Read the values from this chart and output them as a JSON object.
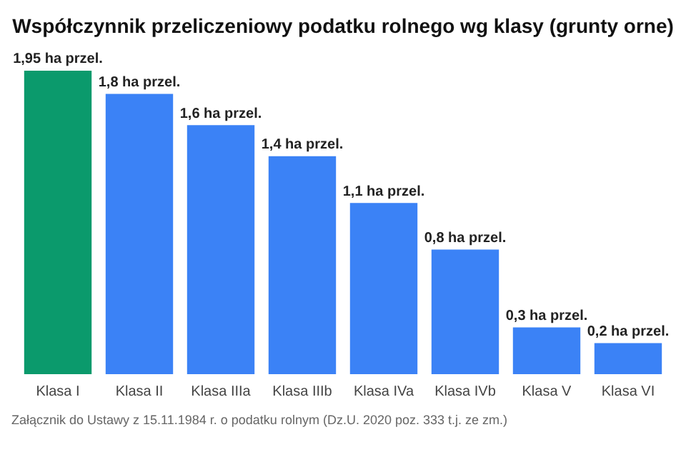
{
  "chart_data": {
    "type": "bar",
    "title": "Współczynnik przeliczeniowy podatku rolnego wg klasy (grunty orne)",
    "categories": [
      "Klasa I",
      "Klasa II",
      "Klasa IIIa",
      "Klasa IIIb",
      "Klasa IVa",
      "Klasa IVb",
      "Klasa V",
      "Klasa VI"
    ],
    "values": [
      1.95,
      1.8,
      1.6,
      1.4,
      1.1,
      0.8,
      0.3,
      0.2
    ],
    "colors": [
      "#0b9a6c",
      "#3b82f6",
      "#3b82f6",
      "#3b82f6",
      "#3b82f6",
      "#3b82f6",
      "#3b82f6",
      "#3b82f6"
    ],
    "value_labels": [
      "1,95 ha przel.",
      "1,8 ha przel.",
      "1,6 ha przel.",
      "1,4 ha przel.",
      "1,1 ha przel.",
      "0,8 ha przel.",
      "0,3 ha przel.",
      "0,2 ha przel."
    ],
    "annotations": [
      "Załącznik do Ustawy z 15.11.1984 r. o podatku rolnym (Dz.U. 2020 poz. 333 t.j. ze zm.)"
    ],
    "grid": false,
    "legend": false
  }
}
